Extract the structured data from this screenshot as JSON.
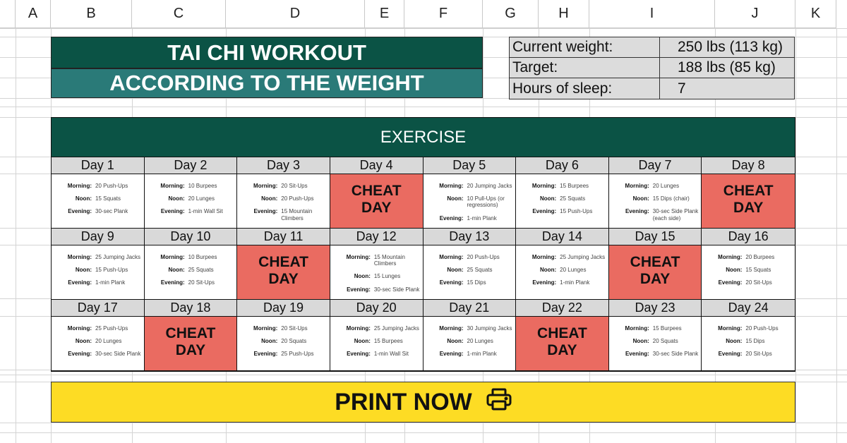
{
  "columns": [
    "A",
    "B",
    "C",
    "D",
    "E",
    "F",
    "G",
    "H",
    "I",
    "J",
    "K"
  ],
  "title": {
    "line1": "TAI CHI WORKOUT",
    "line2": "ACCORDING TO THE WEIGHT"
  },
  "stats": [
    {
      "label": "Current weight:",
      "value": "250 lbs (113 kg)"
    },
    {
      "label": "Target:",
      "value": "188 lbs (85 kg)"
    },
    {
      "label": "Hours of sleep:",
      "value": "7"
    }
  ],
  "exercise": {
    "header": "EXERCISE",
    "labels": {
      "morning": "Morning:",
      "noon": "Noon:",
      "evening": "Evening:"
    },
    "cheat_label": "CHEAT DAY",
    "days": [
      {
        "day": "Day 1",
        "morning": "20 Push-Ups",
        "noon": "15 Squats",
        "evening": "30-sec Plank"
      },
      {
        "day": "Day 2",
        "morning": "10 Burpees",
        "noon": "20 Lunges",
        "evening": "1-min Wall Sit"
      },
      {
        "day": "Day 3",
        "morning": "20 Sit-Ups",
        "noon": "20 Push-Ups",
        "evening": "15 Mountain Climbers"
      },
      {
        "day": "Day 4",
        "cheat": true
      },
      {
        "day": "Day 5",
        "morning": "20 Jumping Jacks",
        "noon": "10 Pull-Ups (or regressions)",
        "evening": "1-min Plank"
      },
      {
        "day": "Day 6",
        "morning": "15 Burpees",
        "noon": "25 Squats",
        "evening": "15 Push-Ups"
      },
      {
        "day": "Day 7",
        "morning": "20 Lunges",
        "noon": "15 Dips (chair)",
        "evening": "30-sec Side Plank (each side)"
      },
      {
        "day": "Day 8",
        "cheat": true
      },
      {
        "day": "Day 9",
        "morning": "25 Jumping Jacks",
        "noon": "15 Push-Ups",
        "evening": "1-min Plank"
      },
      {
        "day": "Day 10",
        "morning": "10 Burpees",
        "noon": "25 Squats",
        "evening": "20 Sit-Ups"
      },
      {
        "day": "Day 11",
        "cheat": true
      },
      {
        "day": "Day 12",
        "morning": "15 Mountain Climbers",
        "noon": "15 Lunges",
        "evening": "30-sec Side Plank"
      },
      {
        "day": "Day 13",
        "morning": "20 Push-Ups",
        "noon": "25 Squats",
        "evening": "15 Dips"
      },
      {
        "day": "Day 14",
        "morning": "25 Jumping Jacks",
        "noon": "20 Lunges",
        "evening": "1-min Plank"
      },
      {
        "day": "Day 15",
        "cheat": true
      },
      {
        "day": "Day 16",
        "morning": "20 Burpees",
        "noon": "15 Squats",
        "evening": "20 Sit-Ups"
      },
      {
        "day": "Day 17",
        "morning": "25 Push-Ups",
        "noon": "20 Lunges",
        "evening": "30-sec Side Plank"
      },
      {
        "day": "Day 18",
        "cheat": true
      },
      {
        "day": "Day 19",
        "morning": "20 Sit-Ups",
        "noon": "20 Squats",
        "evening": "25 Push-Ups"
      },
      {
        "day": "Day 20",
        "morning": "25 Jumping Jacks",
        "noon": "15 Burpees",
        "evening": "1-min Wall Sit"
      },
      {
        "day": "Day 21",
        "morning": "30 Jumping Jacks",
        "noon": "20 Lunges",
        "evening": "1-min Plank"
      },
      {
        "day": "Day 22",
        "cheat": true
      },
      {
        "day": "Day 23",
        "morning": "15 Burpees",
        "noon": "20 Squats",
        "evening": "30-sec Side Plank"
      },
      {
        "day": "Day 24",
        "morning": "20 Push-Ups",
        "noon": "15 Dips",
        "evening": "20 Sit-Ups"
      }
    ]
  },
  "print_button": {
    "label": "PRINT NOW",
    "icon": "printer-icon"
  },
  "colors": {
    "dark_green": "#0b5345",
    "teal": "#2a7a78",
    "cheat_red": "#ea6b61",
    "print_yellow": "#fddc24",
    "label_gray": "#d9d9d9"
  }
}
